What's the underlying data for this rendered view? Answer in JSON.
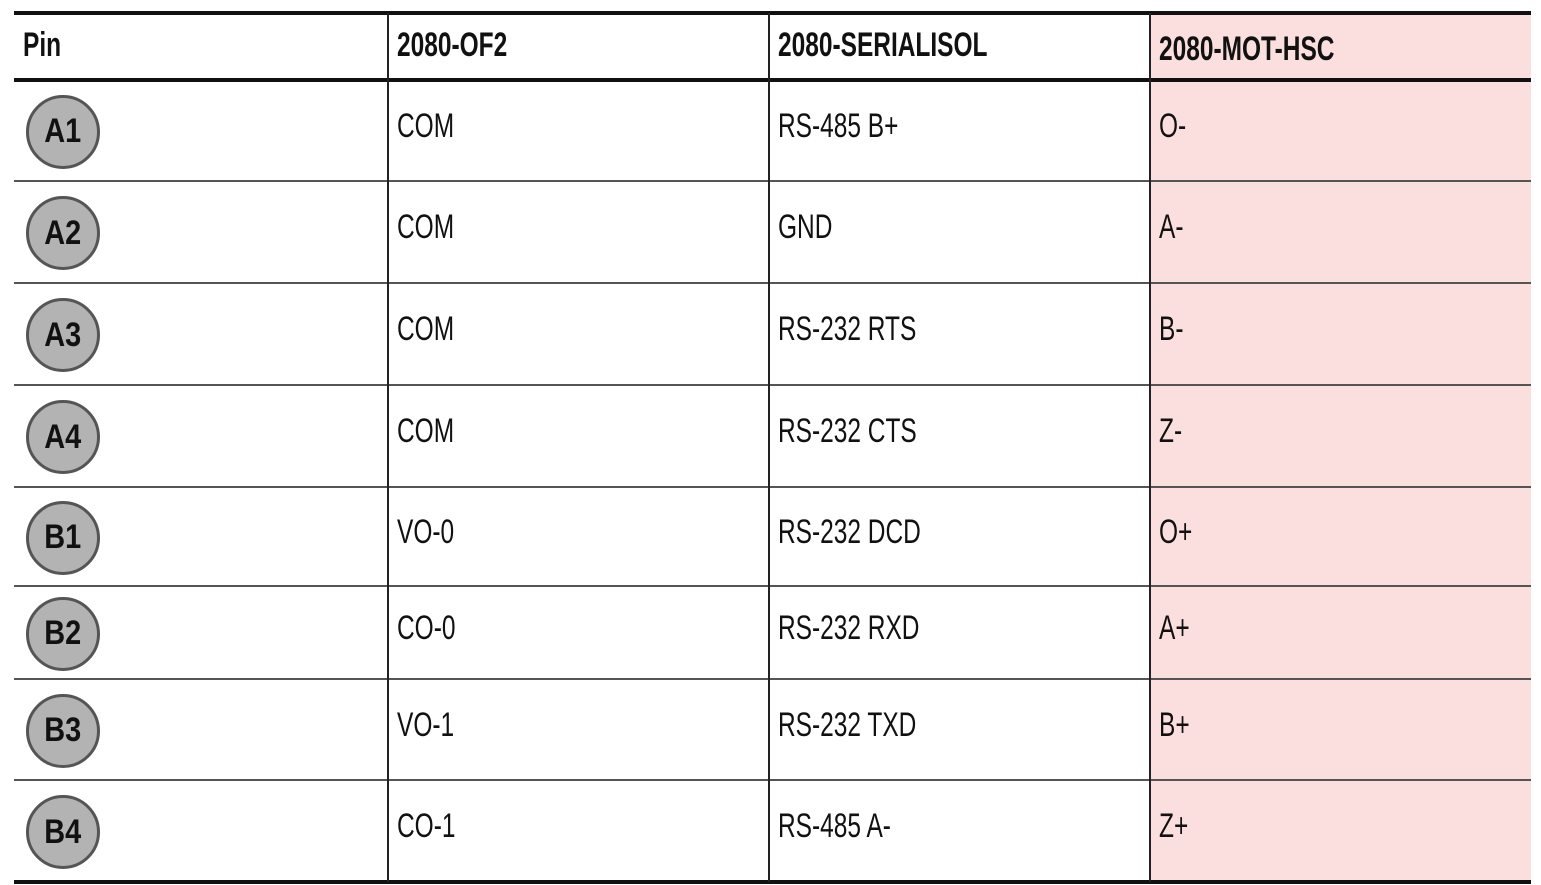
{
  "table": {
    "header": [
      "Pin",
      "2080-OF2",
      "2080-SERIALISOL",
      "2080-MOT-HSC"
    ],
    "rows": [
      [
        "A1",
        "COM",
        "RS-485 B+",
        "O-"
      ],
      [
        "A2",
        "COM",
        "GND",
        "A-"
      ],
      [
        "A3",
        "COM",
        "RS-232 RTS",
        "B-"
      ],
      [
        "A4",
        "COM",
        "RS-232 CTS",
        "Z-"
      ],
      [
        "B1",
        "VO-0",
        "RS-232 DCD",
        "O+"
      ],
      [
        "B2",
        "CO-0",
        "RS-232 RXD",
        "A+"
      ],
      [
        "B3",
        "VO-1",
        "RS-232 TXD",
        "B+"
      ],
      [
        "B4",
        "CO-1",
        "RS-485 A-",
        "Z+"
      ]
    ]
  }
}
